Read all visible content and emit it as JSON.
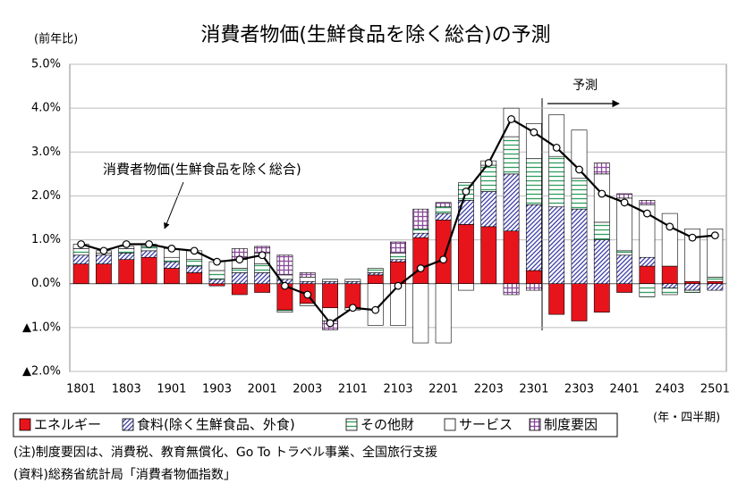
{
  "chart_data": {
    "type": "bar",
    "stacked": true,
    "title": "消費者物価(生鮮食品を除く総合)の予測",
    "y_label": "(前年比)",
    "x_label": "(年・四半期)",
    "forecast_label": "予測",
    "notes": [
      "(注)制度要因は、消費税、教育無償化、Go To トラベル事業、全国旅行支援",
      "(資料)総務省統計局「消費者物価指数」"
    ],
    "categories": [
      "1801",
      null,
      "1803",
      null,
      "1901",
      null,
      "1903",
      null,
      "2001",
      null,
      "2003",
      null,
      "2101",
      null,
      "2103",
      null,
      "2201",
      null,
      "2203",
      null,
      "2301",
      null,
      "2303",
      null,
      "2401",
      null,
      "2403",
      null,
      "2501"
    ],
    "ylim": [
      -2,
      5
    ],
    "yticks": [
      {
        "value": 5,
        "label": "5.0%"
      },
      {
        "value": 4,
        "label": "4.0%"
      },
      {
        "value": 3,
        "label": "3.0%"
      },
      {
        "value": 2,
        "label": "2.0%"
      },
      {
        "value": 1,
        "label": "1.0%"
      },
      {
        "value": 0,
        "label": "0.0%"
      },
      {
        "value": -1,
        "label": "▲1.0%"
      },
      {
        "value": -2,
        "label": "▲2.0%"
      }
    ],
    "grid": true,
    "series": [
      {
        "name": "エネルギー",
        "color": "#e8141c",
        "pattern": "solid",
        "values": [
          0.45,
          0.45,
          0.55,
          0.6,
          0.35,
          0.25,
          -0.05,
          -0.25,
          -0.2,
          -0.6,
          -0.45,
          -0.55,
          -0.55,
          0.2,
          0.5,
          1.05,
          1.45,
          1.35,
          1.3,
          1.2,
          0.3,
          -0.7,
          -0.85,
          -0.65,
          -0.2,
          0.4,
          0.4,
          0.05,
          0.05
        ]
      },
      {
        "name": "食料(除く生鮮食品、外食)",
        "color": "#3a3aa8",
        "pattern": "diagonal",
        "values": [
          0.2,
          0.2,
          0.15,
          0.15,
          0.15,
          0.15,
          0.1,
          0.25,
          0.25,
          0.1,
          0.05,
          0.05,
          0.05,
          0.05,
          0.05,
          0.1,
          0.15,
          0.55,
          0.8,
          1.3,
          1.5,
          1.75,
          1.7,
          1.0,
          0.65,
          0.2,
          -0.1,
          -0.15,
          -0.15
        ]
      },
      {
        "name": "その他財",
        "color": "#2e9e5e",
        "pattern": "horizontal",
        "values": [
          0.15,
          0.05,
          0.1,
          0.1,
          0.1,
          0.15,
          0.2,
          0.1,
          0.2,
          -0.05,
          -0.05,
          0.05,
          0.05,
          0.1,
          0.15,
          0.1,
          0.15,
          0.4,
          0.6,
          0.85,
          1.05,
          1.15,
          0.7,
          0.4,
          0.1,
          -0.3,
          -0.15,
          -0.05,
          0.1
        ]
      },
      {
        "name": "サービス",
        "color": "#ffffff",
        "pattern": "solid",
        "values": [
          0.1,
          0.05,
          0.05,
          0.05,
          0.2,
          0.2,
          0.2,
          0.2,
          0.25,
          0.1,
          0.1,
          -0.3,
          -0.05,
          -0.95,
          -0.95,
          -1.35,
          -1.35,
          -0.15,
          0.1,
          0.65,
          0.8,
          0.95,
          1.1,
          1.1,
          1.2,
          1.2,
          1.2,
          1.2,
          1.1
        ]
      },
      {
        "name": "制度要因",
        "color": "#8a4a9a",
        "pattern": "grid",
        "values": [
          0,
          0,
          0,
          0,
          0,
          0,
          0,
          0.25,
          0.15,
          0.45,
          0.1,
          -0.2,
          0,
          0,
          0.25,
          0.45,
          0.1,
          0,
          0,
          -0.25,
          -0.15,
          0,
          0,
          0.25,
          0.1,
          0.1,
          0,
          0,
          0
        ]
      },
      {
        "name": "消費者物価(生鮮食品を除く総合)",
        "color": "#000000",
        "type": "line",
        "values": [
          0.9,
          0.75,
          0.9,
          0.9,
          0.8,
          0.75,
          0.5,
          0.55,
          0.65,
          -0.05,
          -0.25,
          -0.9,
          -0.55,
          -0.6,
          -0.05,
          0.35,
          0.55,
          2.1,
          2.75,
          3.75,
          3.45,
          3.1,
          2.6,
          2.05,
          1.85,
          1.6,
          1.3,
          1.05,
          1.1
        ]
      }
    ]
  }
}
